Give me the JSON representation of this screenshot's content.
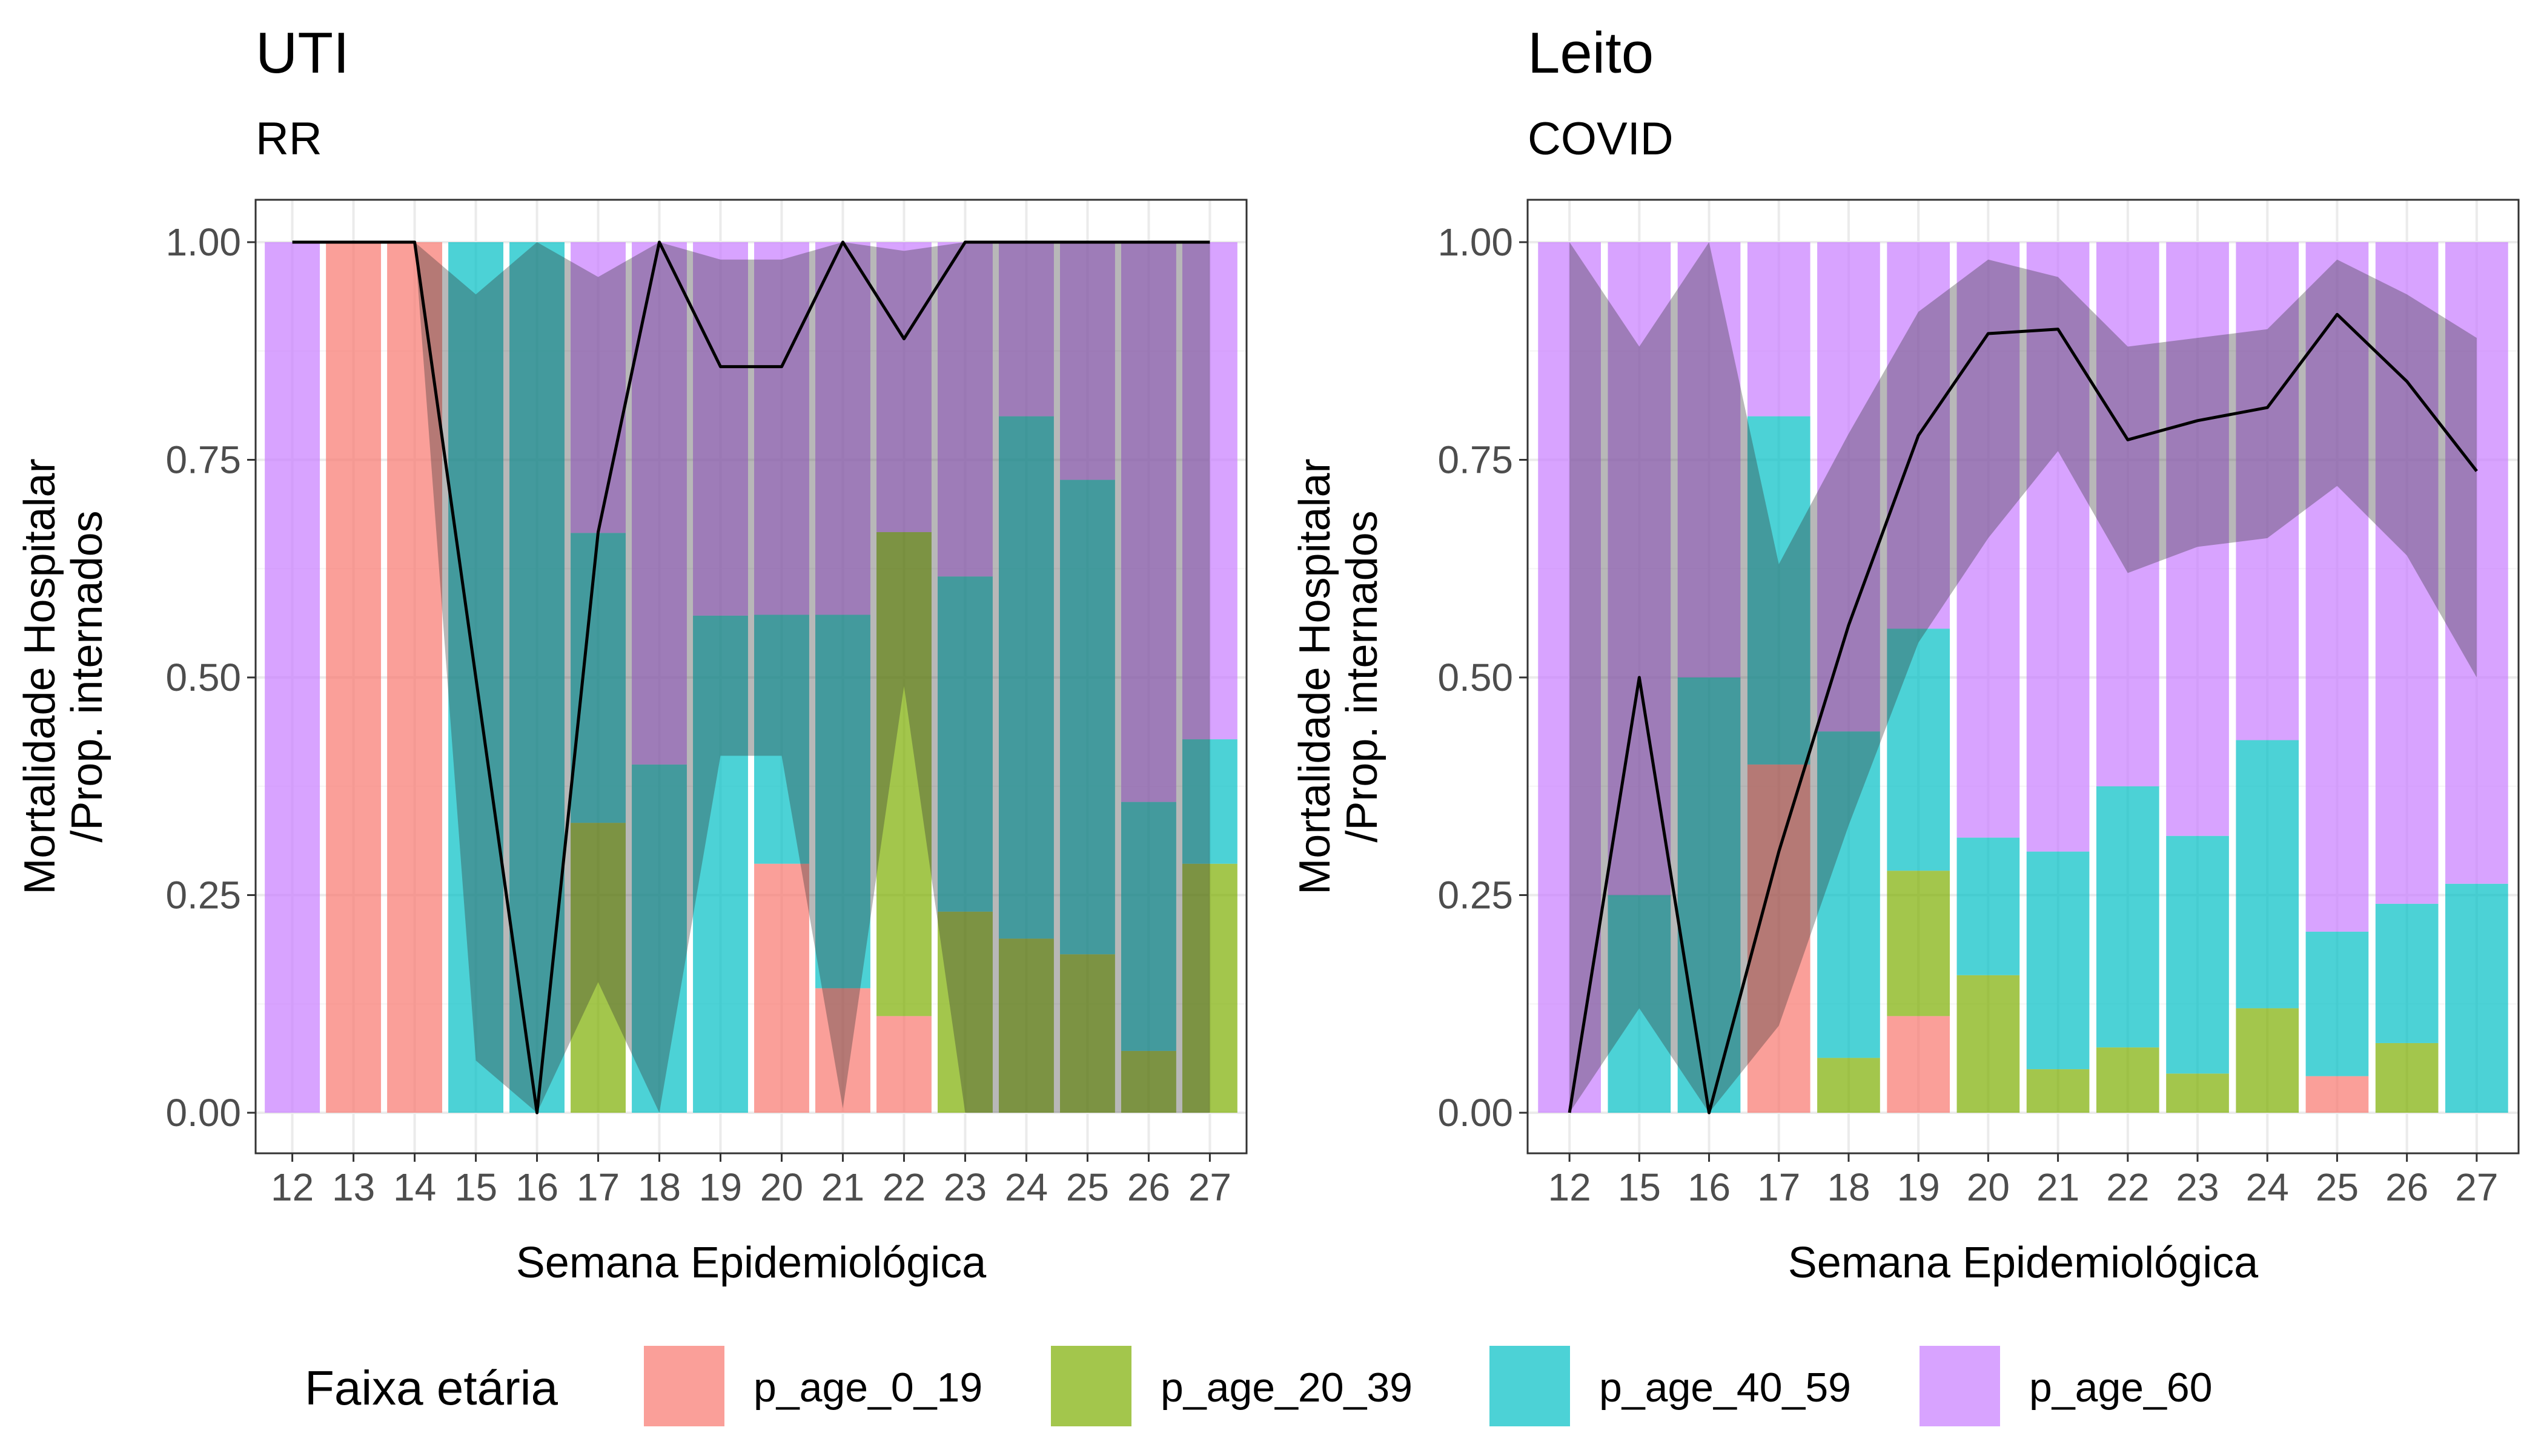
{
  "chart_data": [
    {
      "type": "bar",
      "title": "UTI",
      "subtitle": "RR",
      "xlabel": "Semana Epidemiológica",
      "ylabel_lines": [
        "Mortalidade Hospitalar",
        "/Prop. internados"
      ],
      "ylim": [
        0,
        1
      ],
      "yticks": [
        "0.00",
        "0.25",
        "0.50",
        "0.75",
        "1.00"
      ],
      "grid": true,
      "categories": [
        "12",
        "13",
        "14",
        "15",
        "16",
        "17",
        "18",
        "19",
        "20",
        "21",
        "22",
        "23",
        "24",
        "25",
        "26",
        "27"
      ],
      "series": [
        {
          "key": "p_age_0_19",
          "values": [
            0,
            1,
            1,
            0,
            0,
            0,
            0,
            0,
            0.286,
            0.143,
            0.111,
            0,
            0,
            0,
            0,
            0
          ]
        },
        {
          "key": "p_age_20_39",
          "values": [
            0,
            0,
            0,
            0,
            0,
            0.333,
            0,
            0,
            0,
            0,
            0.556,
            0.231,
            0.2,
            0.182,
            0.071,
            0.286
          ]
        },
        {
          "key": "p_age_40_59",
          "values": [
            0,
            0,
            0,
            1,
            1,
            0.333,
            0.4,
            0.571,
            0.286,
            0.429,
            0,
            0.385,
            0.6,
            0.545,
            0.286,
            0.143
          ]
        },
        {
          "key": "p_age_60",
          "values": [
            1,
            0,
            0,
            0,
            0,
            0.334,
            0.6,
            0.429,
            0.428,
            0.428,
            0.333,
            0.384,
            0.2,
            0.273,
            0.643,
            0.571
          ]
        }
      ],
      "mortality": [
        1,
        1,
        1,
        0.5,
        0,
        0.667,
        1,
        0.857,
        0.857,
        1,
        0.889,
        1,
        1,
        1,
        1,
        1
      ],
      "ci_lower": [
        1,
        1,
        1,
        0.06,
        0,
        0.15,
        0,
        0.41,
        0.41,
        0.005,
        0.49,
        0,
        0,
        0,
        0,
        0
      ],
      "ci_upper": [
        1,
        1,
        1,
        0.94,
        1,
        0.96,
        1,
        0.98,
        0.98,
        1,
        0.99,
        1,
        1,
        1,
        1,
        1
      ]
    },
    {
      "type": "bar",
      "title": "Leito",
      "subtitle": "COVID",
      "xlabel": "Semana Epidemiológica",
      "ylabel_lines": [
        "Mortalidade Hospitalar",
        "/Prop. internados"
      ],
      "ylim": [
        0,
        1
      ],
      "yticks": [
        "0.00",
        "0.25",
        "0.50",
        "0.75",
        "1.00"
      ],
      "grid": true,
      "categories": [
        "12",
        "15",
        "16",
        "17",
        "18",
        "19",
        "20",
        "21",
        "22",
        "23",
        "24",
        "25",
        "26",
        "27"
      ],
      "series": [
        {
          "key": "p_age_0_19",
          "values": [
            0,
            0,
            0,
            0.4,
            0,
            0.111,
            0,
            0,
            0,
            0,
            0,
            0.042,
            0,
            0
          ]
        },
        {
          "key": "p_age_20_39",
          "values": [
            0,
            0,
            0,
            0,
            0.063,
            0.167,
            0.158,
            0.05,
            0.075,
            0.045,
            0.12,
            0,
            0.08,
            0
          ]
        },
        {
          "key": "p_age_40_59",
          "values": [
            0,
            0.25,
            0.5,
            0.4,
            0.375,
            0.278,
            0.158,
            0.25,
            0.3,
            0.273,
            0.308,
            0.166,
            0.16,
            0.263
          ]
        },
        {
          "key": "p_age_60",
          "values": [
            1,
            0.75,
            0.5,
            0.2,
            0.562,
            0.444,
            0.684,
            0.7,
            0.625,
            0.682,
            0.572,
            0.792,
            0.76,
            0.737
          ]
        }
      ],
      "mortality": [
        0,
        0.5,
        0,
        0.3,
        0.56,
        0.778,
        0.895,
        0.9,
        0.773,
        0.795,
        0.81,
        0.917,
        0.84,
        0.737
      ],
      "ci_lower": [
        0,
        0.12,
        0,
        0.1,
        0.33,
        0.54,
        0.66,
        0.76,
        0.62,
        0.65,
        0.66,
        0.72,
        0.64,
        0.5
      ],
      "ci_upper": [
        1,
        0.88,
        1,
        0.63,
        0.78,
        0.92,
        0.98,
        0.96,
        0.88,
        0.89,
        0.9,
        0.98,
        0.94,
        0.89
      ]
    }
  ],
  "legend": {
    "title": "Faixa etária",
    "position": "bottom",
    "items": [
      {
        "key": "p_age_0_19",
        "label": "p_age_0_19",
        "color": "#F8766D"
      },
      {
        "key": "p_age_20_39",
        "label": "p_age_20_39",
        "color": "#7CAE00"
      },
      {
        "key": "p_age_40_59",
        "label": "p_age_40_59",
        "color": "#00BFC4"
      },
      {
        "key": "p_age_60",
        "label": "p_age_60",
        "color": "#C77CFF"
      }
    ]
  },
  "colors": {
    "panel_border": "#333333",
    "grid_major": "#EBEBEB",
    "grid_minor": "#F5F5F5",
    "ribbon": "#333333",
    "line": "#000000",
    "axis_text": "#4D4D4D"
  }
}
